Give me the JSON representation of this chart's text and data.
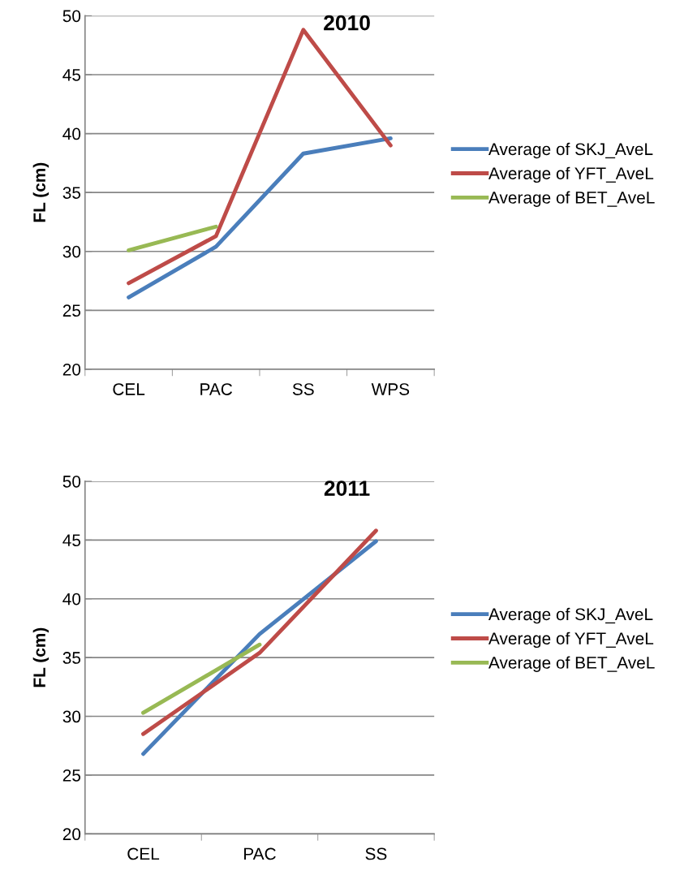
{
  "chart_data": [
    {
      "type": "line",
      "title": "2010",
      "ylabel": "FL (cm)",
      "categories": [
        "CEL",
        "PAC",
        "SS",
        "WPS"
      ],
      "series": [
        {
          "name": "Average of SKJ_AveL",
          "color": "#4a7ebb",
          "values": [
            26.1,
            30.4,
            38.3,
            39.6
          ]
        },
        {
          "name": "Average of YFT_AveL",
          "color": "#be4b48",
          "values": [
            27.3,
            31.3,
            48.8,
            39.0
          ]
        },
        {
          "name": "Average of BET_AveL",
          "color": "#98b954",
          "values": [
            30.1,
            32.1,
            null,
            null
          ]
        }
      ],
      "ylim": [
        20,
        50
      ],
      "yticks": [
        20,
        25,
        30,
        35,
        40,
        45,
        50
      ],
      "grid": "y",
      "legend": "right",
      "marker": "none",
      "line_style": "solid"
    },
    {
      "type": "line",
      "title": "2011",
      "ylabel": "FL (cm)",
      "categories": [
        "CEL",
        "PAC",
        "SS"
      ],
      "series": [
        {
          "name": "Average of SKJ_AveL",
          "color": "#4a7ebb",
          "values": [
            26.8,
            37.0,
            44.9
          ]
        },
        {
          "name": "Average of YFT_AveL",
          "color": "#be4b48",
          "values": [
            28.5,
            35.4,
            45.8
          ]
        },
        {
          "name": "Average of BET_AveL",
          "color": "#98b954",
          "values": [
            30.3,
            36.1,
            null
          ]
        }
      ],
      "ylim": [
        20,
        50
      ],
      "yticks": [
        20,
        25,
        30,
        35,
        40,
        45,
        50
      ],
      "grid": "y",
      "legend": "right",
      "marker": "none",
      "line_style": "solid"
    }
  ]
}
